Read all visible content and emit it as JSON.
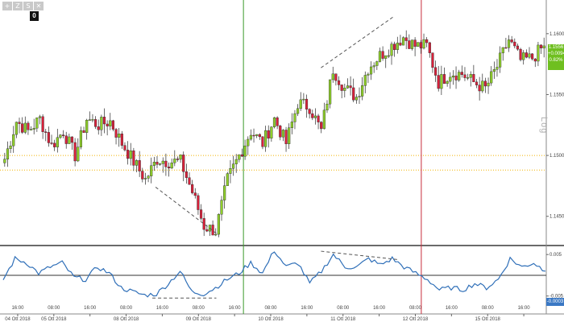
{
  "toolbar": {
    "buttons": [
      {
        "label": "+",
        "icon": "zoom-in-icon"
      },
      {
        "label": "Z",
        "icon": "zoom-tool-icon"
      },
      {
        "label": "S",
        "icon": "snap-icon"
      },
      {
        "label": "✕",
        "icon": "crosshair-icon"
      }
    ],
    "badge": "0"
  },
  "scale_label": "Log",
  "price_tag": {
    "line1": "1.1556",
    "line2": "+0.0094",
    "line3": "0.82%"
  },
  "osc_tag": "-0.0003",
  "colors": {
    "up": "#8fcf2a",
    "down": "#d8203a",
    "oscillator": "#2f6fb8",
    "vline_green": "#3a9a2a",
    "vline_red": "#c82a3a",
    "hline": "#f2b400"
  },
  "chart_data": {
    "type": "candlestick",
    "price_axis": {
      "ticks": [
        "1.1600",
        "1.1550",
        "1.1500",
        "1.1450"
      ],
      "range": [
        1.1428,
        1.1625
      ],
      "scale": "log"
    },
    "oscillator_axis": {
      "ticks": [
        "0.005",
        "-0.005"
      ],
      "range": [
        -0.0068,
        0.0062
      ]
    },
    "time_labels": [
      {
        "time": "16:00",
        "date": "04 Ott 2018"
      },
      {
        "time": "08:00",
        "date": "05 Ott 2018"
      },
      {
        "time": "16:00",
        "date": ""
      },
      {
        "time": "08:00",
        "date": "08 Ott 2018"
      },
      {
        "time": "16:00",
        "date": ""
      },
      {
        "time": "08:00",
        "date": "09 Ott 2018"
      },
      {
        "time": "16:00",
        "date": ""
      },
      {
        "time": "08:00",
        "date": "10 Ott 2018"
      },
      {
        "time": "16:00",
        "date": ""
      },
      {
        "time": "08:00",
        "date": "11 Ott 2018"
      },
      {
        "time": "16:00",
        "date": ""
      },
      {
        "time": "08:00",
        "date": "12 Ott 2018"
      },
      {
        "time": "16:00",
        "date": ""
      },
      {
        "time": "08:00",
        "date": "15 Ott 2018"
      },
      {
        "time": "16:00",
        "date": ""
      }
    ],
    "horizontal_lines": [
      1.15,
      1.1488
    ],
    "oscillator_zero_line": 0,
    "vertical_markers": [
      "09 Ott 2018 16:00",
      "12 Ott 2018 08:00"
    ],
    "close_anchors": [
      1.1497,
      1.1528,
      1.152,
      1.153,
      1.1508,
      1.152,
      1.15,
      1.153,
      1.1525,
      1.1528,
      1.151,
      1.1495,
      1.148,
      1.1497,
      1.1495,
      1.1495,
      1.147,
      1.1442,
      1.1438,
      1.148,
      1.15,
      1.152,
      1.151,
      1.153,
      1.151,
      1.1543,
      1.154,
      1.152,
      1.1571,
      1.1555,
      1.1548,
      1.1572,
      1.1582,
      1.159,
      1.1597,
      1.159,
      1.159,
      1.156,
      1.1568,
      1.1567,
      1.156,
      1.1555,
      1.1573,
      1.1595,
      1.1578,
      1.158,
      1.159
    ],
    "oscillator_anchors": [
      -0.001,
      0.004,
      0.003,
      0.0005,
      0.002,
      0.003,
      -0.0005,
      -0.001,
      0.002,
      0.0005,
      -0.003,
      -0.004,
      -0.0048,
      -0.0045,
      -0.002,
      0.001,
      -0.004,
      -0.0045,
      -0.003,
      -0.001,
      0.0005,
      0.003,
      0.0005,
      0.006,
      0.002,
      0.003,
      -0.002,
      0.001,
      0.005,
      0.002,
      0.002,
      0.004,
      0.0025,
      0.004,
      0.002,
      0.0005,
      -0.001,
      -0.0035,
      -0.003,
      -0.0035,
      -0.002,
      -0.003,
      -0.001,
      0.004,
      0.002,
      0.003,
      0.001
    ],
    "trendlines": [
      {
        "pane": "price",
        "from": {
          "t": 0.281,
          "v": 1.1474
        },
        "to": {
          "t": 0.393,
          "v": 1.1436
        }
      },
      {
        "pane": "price",
        "from": {
          "t": 0.586,
          "v": 1.1572
        },
        "to": {
          "t": 0.72,
          "v": 1.1614
        }
      },
      {
        "pane": "oscillator",
        "from": {
          "t": 0.275,
          "v": -0.0055
        },
        "to": {
          "t": 0.393,
          "v": -0.0055
        }
      },
      {
        "pane": "oscillator",
        "from": {
          "t": 0.586,
          "v": 0.0058
        },
        "to": {
          "t": 0.727,
          "v": 0.0038
        }
      }
    ]
  }
}
